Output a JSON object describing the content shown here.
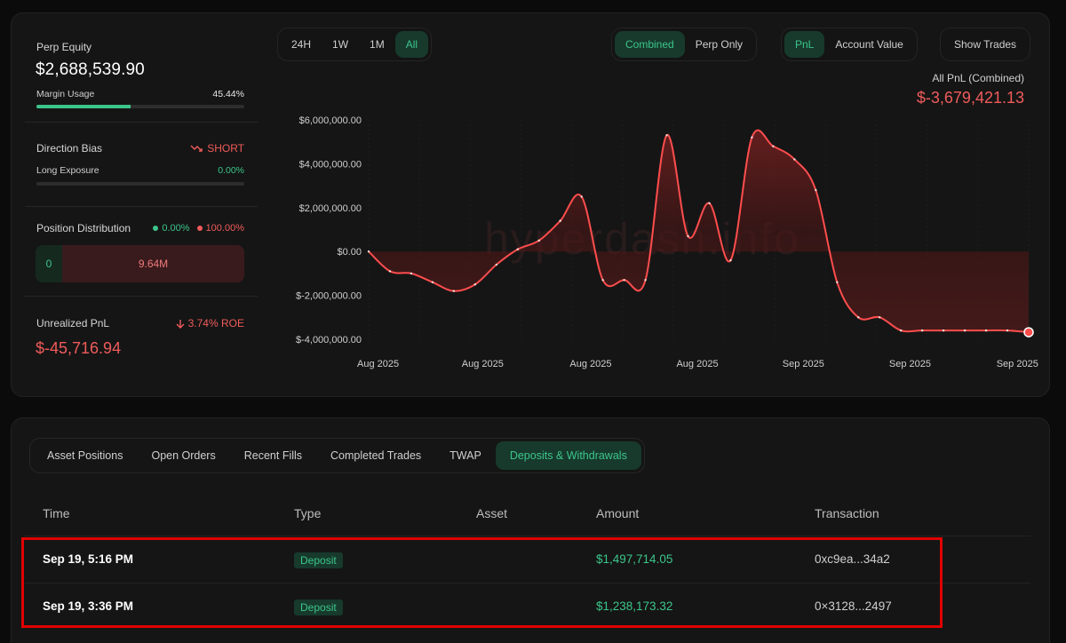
{
  "summary": {
    "perp_equity_label": "Perp Equity",
    "perp_equity_value": "$2,688,539.90",
    "margin_usage_label": "Margin Usage",
    "margin_usage_value": "45.44%",
    "margin_usage_fraction": 0.4544,
    "direction_bias_label": "Direction Bias",
    "direction_bias_value": "SHORT",
    "long_exposure_label": "Long Exposure",
    "long_exposure_value": "0.00%",
    "long_exposure_fraction": 0.0,
    "position_distribution_label": "Position Distribution",
    "position_long_pct": "0.00%",
    "position_short_pct": "100.00%",
    "position_long_value": "0",
    "position_short_value": "9.64M",
    "unrealized_pnl_label": "Unrealized PnL",
    "unrealized_roe": "3.74% ROE",
    "unrealized_pnl_value": "$-45,716.94"
  },
  "controls": {
    "timeframes": [
      "24H",
      "1W",
      "1M",
      "All"
    ],
    "timeframe_active": "All",
    "modes": [
      "Combined",
      "Perp Only"
    ],
    "mode_active": "Combined",
    "metrics": [
      "PnL",
      "Account Value"
    ],
    "metric_active": "PnL",
    "show_trades": "Show Trades"
  },
  "chart_header": {
    "label": "All PnL (Combined)",
    "value": "$-3,679,421.13"
  },
  "watermark": "hyperdash.info",
  "chart_data": {
    "type": "area",
    "xlabel": "",
    "ylabel": "",
    "x_tick_labels": [
      "Aug 2025",
      "Aug 2025",
      "Aug 2025",
      "Aug 2025",
      "Sep 2025",
      "Sep 2025",
      "Sep 2025"
    ],
    "y_tick_labels": [
      "$6,000,000.00",
      "$4,000,000.00",
      "$2,000,000.00",
      "$0.00",
      "$-2,000,000.00",
      "$-4,000,000.00"
    ],
    "ylim": [
      -4000000,
      6000000
    ],
    "grid": true,
    "series": [
      {
        "values": [
          0,
          -900000,
          -1000000,
          -1400000,
          -1800000,
          -1500000,
          -600000,
          100000,
          500000,
          1400000,
          2500000,
          -1300000,
          -1300000,
          -1300000,
          5300000,
          700000,
          2200000,
          -400000,
          5200000,
          4800000,
          4200000,
          2800000,
          -1400000,
          -3000000,
          -3000000,
          -3600000,
          -3600000,
          -3600000,
          -3600000,
          -3600000,
          -3600000,
          -3679421
        ]
      }
    ],
    "colors": {
      "line": "#ff4d4d",
      "fill": "#5a1c1c"
    }
  },
  "tabs": [
    "Asset Positions",
    "Open Orders",
    "Recent Fills",
    "Completed Trades",
    "TWAP",
    "Deposits & Withdrawals"
  ],
  "tab_active": "Deposits & Withdrawals",
  "table": {
    "columns": [
      "Time",
      "Type",
      "Asset",
      "Amount",
      "Transaction"
    ],
    "rows": [
      {
        "time": "Sep 19, 5:16 PM",
        "type": "Deposit",
        "asset": "",
        "amount": "$1,497,714.05",
        "tx": "0xc9ea...34a2"
      },
      {
        "time": "Sep 19, 3:36 PM",
        "type": "Deposit",
        "asset": "",
        "amount": "$1,238,173.32",
        "tx": "0×3128...2497"
      }
    ]
  }
}
